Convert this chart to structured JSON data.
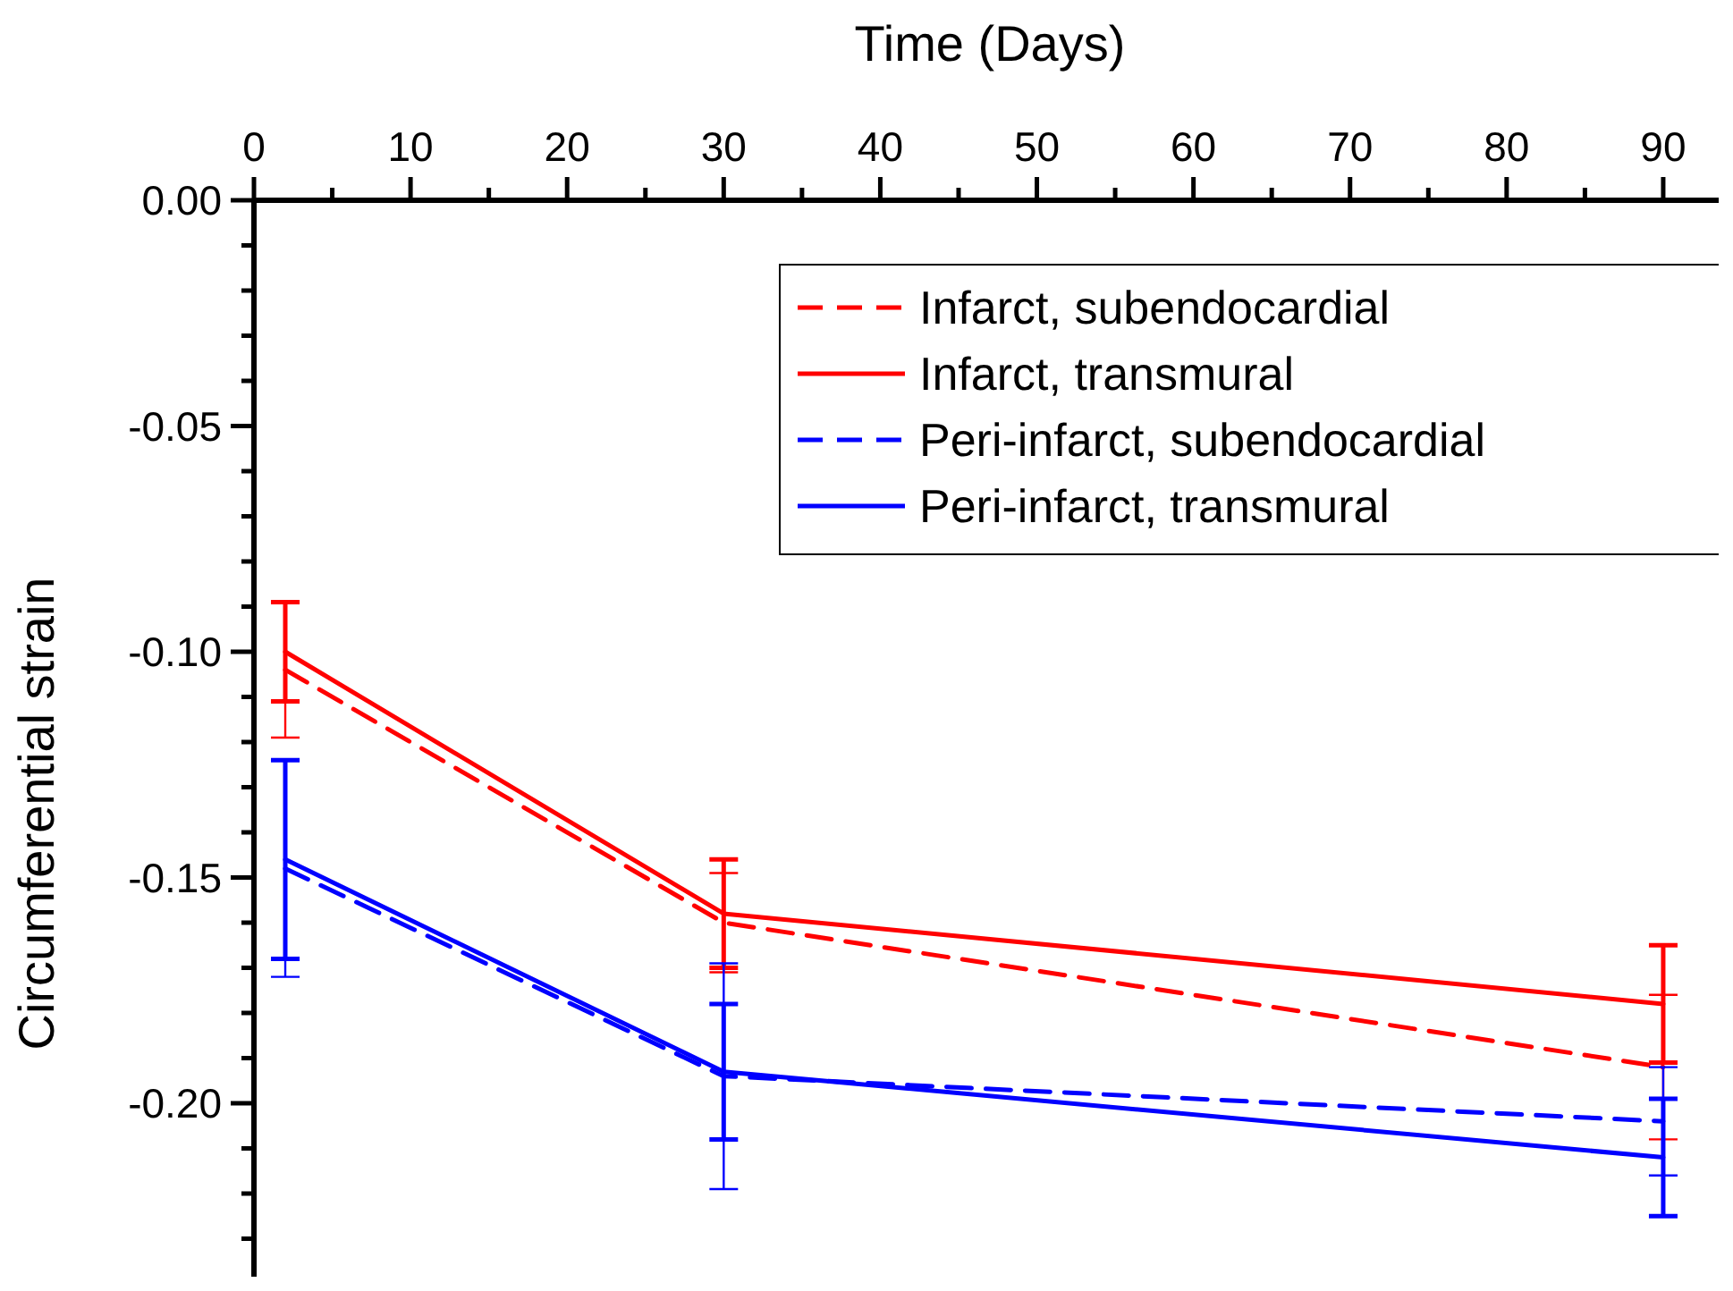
{
  "chart_data": {
    "type": "line",
    "xlabel": "Time (Days)",
    "ylabel": "Circumferential strain",
    "xlim": [
      0,
      94
    ],
    "xticks": [
      0,
      {
        "value": 5,
        "label": null
      },
      10,
      {
        "value": 15,
        "label": null
      },
      20,
      {
        "value": 25,
        "label": null
      },
      30,
      {
        "value": 35,
        "label": null
      },
      40,
      {
        "value": 45,
        "label": null
      },
      50,
      {
        "value": 55,
        "label": null
      },
      60,
      {
        "value": 65,
        "label": null
      },
      70,
      {
        "value": 75,
        "label": null
      },
      80,
      {
        "value": 85,
        "label": null
      },
      90
    ],
    "ylim": [
      -0.24,
      0
    ],
    "yticks": [
      {
        "value": 0,
        "label": "0.00"
      },
      {
        "value": -0.01,
        "label": null
      },
      {
        "value": -0.02,
        "label": null
      },
      {
        "value": -0.03,
        "label": null
      },
      {
        "value": -0.04,
        "label": null
      },
      {
        "value": -0.05,
        "label": "-0.05"
      },
      {
        "value": -0.06,
        "label": null
      },
      {
        "value": -0.07,
        "label": null
      },
      {
        "value": -0.08,
        "label": null
      },
      {
        "value": -0.09,
        "label": null
      },
      {
        "value": -0.1,
        "label": "-0.10"
      },
      {
        "value": -0.11,
        "label": null
      },
      {
        "value": -0.12,
        "label": null
      },
      {
        "value": -0.13,
        "label": null
      },
      {
        "value": -0.14,
        "label": null
      },
      {
        "value": -0.15,
        "label": "-0.15"
      },
      {
        "value": -0.16,
        "label": null
      },
      {
        "value": -0.17,
        "label": null
      },
      {
        "value": -0.18,
        "label": null
      },
      {
        "value": -0.19,
        "label": null
      },
      {
        "value": -0.2,
        "label": "-0.20"
      },
      {
        "value": -0.21,
        "label": null
      },
      {
        "value": -0.22,
        "label": null
      },
      {
        "value": -0.23,
        "label": null
      }
    ],
    "x": [
      2,
      30,
      90
    ],
    "grid": false,
    "legend": "top right",
    "marker": "none",
    "series": [
      {
        "name": "Infarct, subendocardial",
        "color": "#ff0000",
        "line_style": "dashed",
        "values": [
          -0.104,
          -0.16,
          -0.192
        ],
        "errors": [
          0.015,
          0.011,
          0.016
        ]
      },
      {
        "name": "Infarct, transmural",
        "color": "#ff0000",
        "line_style": "solid",
        "values": [
          -0.1,
          -0.158,
          -0.178
        ],
        "errors": [
          0.011,
          0.012,
          0.013
        ]
      },
      {
        "name": "Peri-infarct, subendocardial",
        "color": "#0000ff",
        "line_style": "dashed",
        "values": [
          -0.148,
          -0.194,
          -0.204
        ],
        "errors": [
          0.024,
          0.025,
          0.012
        ]
      },
      {
        "name": "Peri-infarct, transmural",
        "color": "#0000ff",
        "line_style": "solid",
        "values": [
          -0.146,
          -0.193,
          -0.212
        ],
        "errors": [
          0.022,
          0.015,
          0.013
        ]
      }
    ]
  }
}
